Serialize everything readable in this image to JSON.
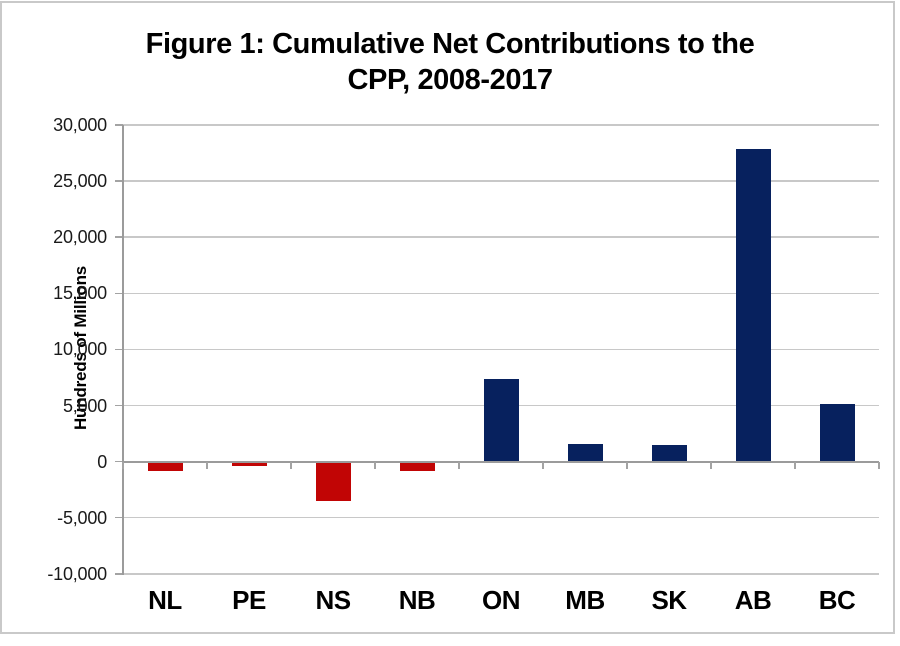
{
  "title": {
    "line1": "Figure 1: Cumulative Net Contributions to the",
    "line2": "CPP, 2008-2017"
  },
  "y_axis": {
    "tick_labels": [
      "30,000",
      "25,000",
      "20,000",
      "15,000",
      "10,000",
      "5,000",
      "0",
      "-5,000",
      "-10,000"
    ]
  },
  "colors": {
    "positive_bar": "#07215E",
    "negative_bar": "#C10505",
    "gridline": "#C8C8C8",
    "axis_line": "#9B9B9B",
    "background": "#FFFFFF",
    "chart_border": "#C9C9C9"
  },
  "chart_data": {
    "type": "bar",
    "title": "Figure 1: Cumulative Net Contributions to the CPP, 2008-2017",
    "categories": [
      "NL",
      "PE",
      "NS",
      "NB",
      "ON",
      "MB",
      "SK",
      "AB",
      "BC"
    ],
    "values": [
      -800,
      -350,
      -3500,
      -800,
      7400,
      1600,
      1500,
      27900,
      5100
    ],
    "xlabel": "",
    "ylabel": "Hundreds of Millions",
    "ylim": [
      -10000,
      30000
    ],
    "ytick_step": 5000,
    "grid": true,
    "legend": false,
    "series_colors": {
      "positive": "#07215E",
      "negative": "#C10505"
    }
  }
}
